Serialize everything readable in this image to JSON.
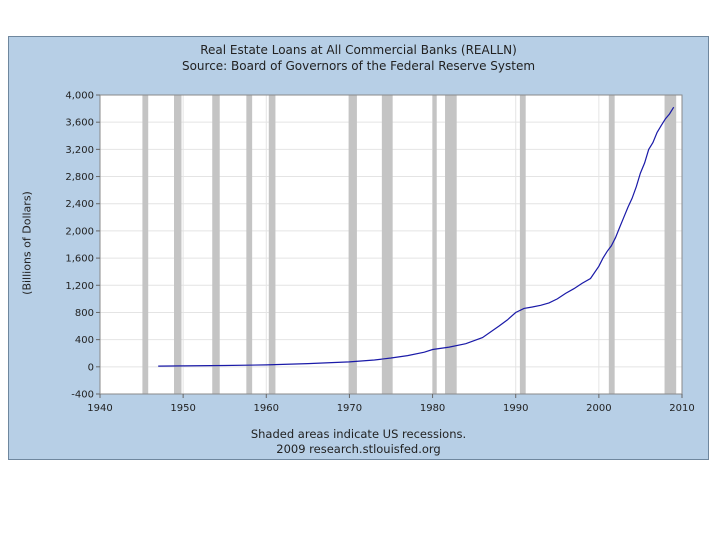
{
  "chart_data": {
    "type": "line",
    "title": "Real Estate Loans at All Commercial Banks (REALLN)",
    "subtitle": "Source: Board of Governors of the Federal Reserve System",
    "ylabel": "(Billions of Dollars)",
    "xlabel": "",
    "footer": [
      "Shaded areas indicate US recessions.",
      "2009 research.stlouisfed.org"
    ],
    "xlim": [
      1940,
      2010
    ],
    "ylim": [
      -400,
      4000
    ],
    "x_ticks": [
      1940,
      1950,
      1960,
      1970,
      1980,
      1990,
      2000,
      2010
    ],
    "x_tick_labels": [
      "1940",
      "1950",
      "1960",
      "1970",
      "1980",
      "1990",
      "2000",
      "2010"
    ],
    "y_ticks": [
      -400,
      0,
      400,
      800,
      1200,
      1600,
      2000,
      2400,
      2800,
      3200,
      3600,
      4000
    ],
    "y_tick_labels": [
      "-400",
      "0",
      "400",
      "800",
      "1,200",
      "1,600",
      "2,000",
      "2,400",
      "2,800",
      "3,200",
      "3,600",
      "4,000"
    ],
    "grid": true,
    "recessions": [
      [
        1945.1,
        1945.8
      ],
      [
        1948.9,
        1949.8
      ],
      [
        1953.5,
        1954.4
      ],
      [
        1957.6,
        1958.3
      ],
      [
        1960.3,
        1961.1
      ],
      [
        1969.9,
        1970.9
      ],
      [
        1973.9,
        1975.2
      ],
      [
        1980.0,
        1980.5
      ],
      [
        1981.5,
        1982.9
      ],
      [
        1990.5,
        1991.2
      ],
      [
        2001.2,
        2001.9
      ],
      [
        2007.9,
        2009.3
      ]
    ],
    "series": [
      {
        "color": "#1a1aa8",
        "x": [
          1947,
          1950,
          1955,
          1960,
          1965,
          1970,
          1973,
          1975,
          1977,
          1979,
          1980,
          1982,
          1984,
          1986,
          1988,
          1989,
          1990,
          1991,
          1992,
          1993,
          1994,
          1995,
          1996,
          1997,
          1998,
          1999,
          2000,
          2000.5,
          2001,
          2001.5,
          2002,
          2002.5,
          2003,
          2003.5,
          2004,
          2004.5,
          2005,
          2005.5,
          2006,
          2006.5,
          2007,
          2007.5,
          2008,
          2008.5,
          2009
        ],
        "values": [
          10,
          13,
          20,
          28,
          48,
          72,
          100,
          130,
          165,
          215,
          255,
          290,
          340,
          430,
          600,
          690,
          800,
          860,
          880,
          905,
          940,
          1000,
          1080,
          1150,
          1230,
          1300,
          1480,
          1600,
          1700,
          1780,
          1900,
          2050,
          2200,
          2350,
          2480,
          2650,
          2850,
          3000,
          3200,
          3300,
          3450,
          3550,
          3650,
          3720,
          3820
        ]
      }
    ]
  }
}
